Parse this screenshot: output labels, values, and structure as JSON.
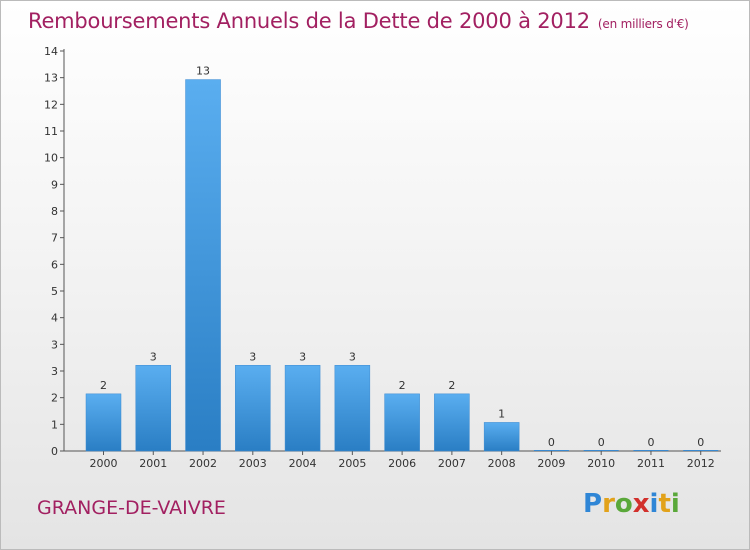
{
  "header": {
    "title": "Remboursements Annuels de la Dette de 2000 à 2012",
    "unit": "(en milliers d'€)"
  },
  "footer": {
    "commune": "GRANGE-DE-VAIVRE",
    "logo_letters": [
      "P",
      "r",
      "o",
      "x",
      "i",
      "t",
      "i"
    ],
    "logo_colors": [
      "#2f86d6",
      "#e2a21a",
      "#5aa83a",
      "#d2302c",
      "#2f86d6",
      "#e2a21a",
      "#5aa83a"
    ]
  },
  "chart_data": {
    "type": "bar",
    "title": "Remboursements Annuels de la Dette de 2000 à 2012",
    "subtitle": "(en milliers d'€)",
    "xlabel": "",
    "ylabel": "",
    "categories": [
      "2000",
      "2001",
      "2002",
      "2003",
      "2004",
      "2005",
      "2006",
      "2007",
      "2008",
      "2009",
      "2010",
      "2011",
      "2012"
    ],
    "values": [
      2,
      3,
      13,
      3,
      3,
      3,
      2,
      2,
      1,
      0,
      0,
      0,
      0
    ],
    "y_ticks": [
      "0",
      "1",
      "2",
      "3",
      "3",
      "4",
      "5",
      "6",
      "7",
      "8",
      "9",
      "10",
      "11",
      "12",
      "13",
      "14"
    ],
    "ylim": [
      0,
      14
    ],
    "grid": false,
    "bar_color": "#4a9ee0"
  }
}
